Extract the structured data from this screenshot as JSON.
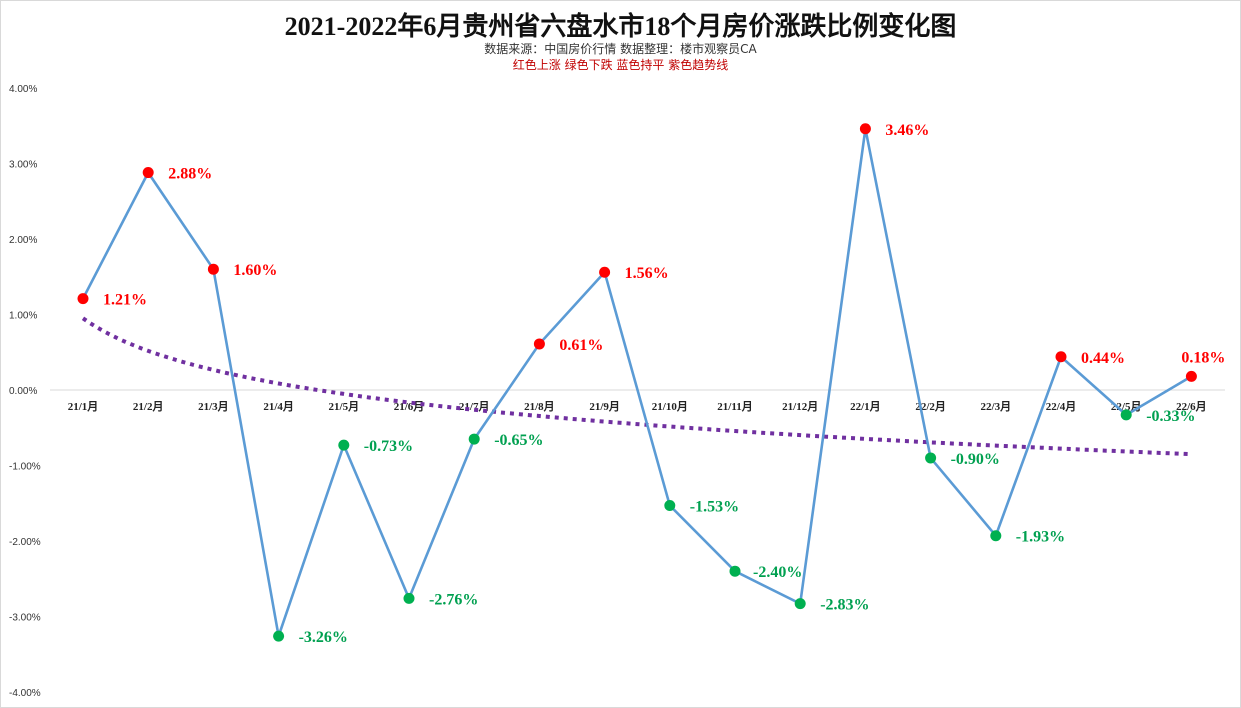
{
  "title": "2021-2022年6月贵州省六盘水市18个月房价涨跌比例变化图",
  "subtitle": "数据来源：中国房价行情      数据整理：楼市观察员CA",
  "legend_text": "红色上涨    绿色下跌    蓝色持平    紫色趋势线",
  "colors": {
    "up": "#ff0000",
    "down": "#00b050",
    "line": "#5b9bd5",
    "trend": "#7030a0",
    "up_label": "#ff0000",
    "down_label": "#00a050"
  },
  "chart_data": {
    "type": "line",
    "categories": [
      "21/1月",
      "21/2月",
      "21/3月",
      "21/4月",
      "21/5月",
      "21/6月",
      "21/7月",
      "21/8月",
      "21/9月",
      "21/10月",
      "21/11月",
      "21/12月",
      "22/1月",
      "22/2月",
      "22/3月",
      "22/4月",
      "22/5月",
      "22/6月"
    ],
    "values": [
      1.21,
      2.88,
      1.6,
      -3.26,
      -0.73,
      -2.76,
      -0.65,
      0.61,
      1.56,
      -1.53,
      -2.4,
      -2.83,
      3.46,
      -0.9,
      -1.93,
      0.44,
      -0.33,
      0.18
    ],
    "data_labels": [
      "1.21%",
      "2.88%",
      "1.60%",
      "-3.26%",
      "-0.73%",
      "-2.76%",
      "-0.65%",
      "0.61%",
      "1.56%",
      "-1.53%",
      "-2.40%",
      "-2.83%",
      "3.46%",
      "-0.90%",
      "-1.93%",
      "0.44%",
      "-0.33%",
      "0.18%"
    ],
    "trend": {
      "type": "logarithmic",
      "start": 0.95,
      "end": -0.85
    },
    "ylim": [
      -4,
      4
    ],
    "yticks": [
      4,
      3,
      2,
      1,
      0,
      -1,
      -2,
      -3,
      -4
    ],
    "ytick_labels": [
      "4.00%",
      "3.00%",
      "2.00%",
      "1.00%",
      "0.00%",
      "-1.00%",
      "-2.00%",
      "-3.00%",
      "-4.00%"
    ],
    "grid": false,
    "xlabel": "",
    "ylabel": ""
  }
}
